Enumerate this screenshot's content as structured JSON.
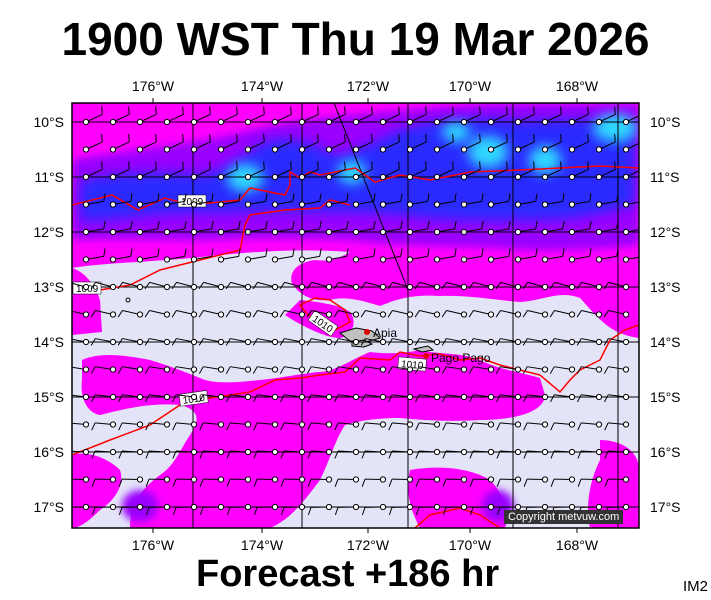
{
  "title": "1900 WST Thu 19 Mar 2026",
  "footer": "Forecast +186 hr",
  "image_code": "IM2",
  "copyright": "Copyright metvuw.com",
  "lon_labels": [
    "176°W",
    "174°W",
    "172°W",
    "170°W",
    "168°W"
  ],
  "lat_labels": [
    "10°S",
    "11°S",
    "12°S",
    "13°S",
    "14°S",
    "15°S",
    "16°S",
    "17°S"
  ],
  "places": [
    {
      "name": "Apia",
      "lon": -171.76,
      "lat": -13.83
    },
    {
      "name": "Pago Pago",
      "lon": -170.7,
      "lat": -14.28
    }
  ],
  "isobar_labels": [
    "1009",
    "1009",
    "1010",
    "1010",
    "1010"
  ],
  "colors": {
    "background": "#e4e4f8",
    "rain_light": "#ff00ff",
    "rain_moderate": "#9a00ff",
    "rain_heavy": "#2020ff",
    "rain_heaviest": "#00e0ff",
    "isobar": "#ff0000",
    "land": "#b0b0b0",
    "grid": "#000000"
  },
  "map_extent": {
    "lon": [
      -177.3,
      -166.8
    ],
    "lat": [
      -17.3,
      -9.7
    ]
  }
}
